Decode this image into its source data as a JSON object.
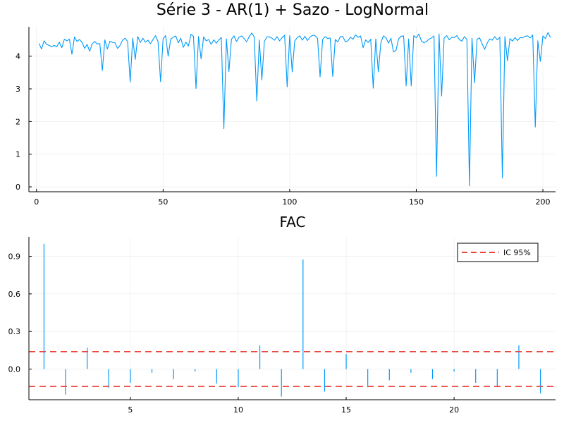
{
  "chart_data": [
    {
      "type": "line",
      "title": "Série 3 - AR(1) + Sazo - LogNormal",
      "xlabel": "",
      "ylabel": "",
      "xlim": [
        -3,
        205
      ],
      "ylim": [
        -0.15,
        4.9
      ],
      "xticks": [
        0,
        50,
        100,
        150,
        200
      ],
      "yticks": [
        0,
        1,
        2,
        3,
        4
      ],
      "xtick_labels": [
        "0",
        "50",
        "100",
        "150",
        "200"
      ],
      "ytick_labels": [
        "0",
        "1",
        "2",
        "3",
        "4"
      ],
      "grid": true,
      "legend": false,
      "series": [
        {
          "color": "#009AFA",
          "x_start": 1,
          "x_step": 1,
          "values": [
            4.39,
            4.22,
            4.47,
            4.36,
            4.33,
            4.29,
            4.33,
            4.29,
            4.43,
            4.26,
            4.52,
            4.47,
            4.52,
            4.06,
            4.59,
            4.45,
            4.51,
            4.42,
            4.24,
            4.36,
            4.15,
            4.38,
            4.45,
            4.37,
            4.39,
            3.56,
            4.5,
            4.22,
            4.46,
            4.42,
            4.41,
            4.24,
            4.33,
            4.49,
            4.55,
            4.45,
            3.21,
            4.55,
            3.9,
            4.6,
            4.42,
            4.55,
            4.43,
            4.49,
            4.38,
            4.51,
            4.63,
            4.45,
            3.22,
            4.53,
            4.63,
            4.0,
            4.52,
            4.58,
            4.62,
            4.41,
            4.55,
            4.27,
            4.43,
            4.31,
            4.67,
            4.61,
            3.01,
            4.6,
            3.92,
            4.59,
            4.47,
            4.51,
            4.36,
            4.5,
            4.4,
            4.5,
            4.57,
            1.78,
            4.53,
            3.53,
            4.52,
            4.62,
            4.45,
            4.58,
            4.62,
            4.54,
            4.44,
            4.6,
            4.71,
            4.59,
            2.63,
            4.5,
            3.27,
            4.45,
            4.59,
            4.59,
            4.55,
            4.49,
            4.6,
            4.47,
            4.57,
            4.64,
            3.06,
            4.63,
            3.52,
            4.47,
            4.57,
            4.62,
            4.49,
            4.61,
            4.48,
            4.58,
            4.64,
            4.63,
            4.55,
            3.37,
            4.51,
            4.6,
            4.54,
            4.56,
            3.38,
            4.51,
            4.44,
            4.6,
            4.6,
            4.44,
            4.47,
            4.58,
            4.52,
            4.65,
            4.58,
            4.62,
            4.26,
            4.5,
            4.42,
            4.52,
            3.02,
            4.53,
            3.52,
            4.41,
            4.62,
            4.57,
            4.4,
            4.55,
            4.13,
            4.18,
            4.53,
            4.61,
            4.62,
            3.09,
            4.53,
            3.09,
            4.63,
            4.56,
            4.68,
            4.47,
            4.41,
            4.45,
            4.52,
            4.56,
            4.62,
            0.32,
            4.68,
            2.78,
            4.56,
            4.63,
            4.5,
            4.58,
            4.57,
            4.63,
            4.51,
            4.46,
            4.6,
            4.51,
            0.03,
            4.56,
            3.18,
            4.52,
            4.56,
            4.38,
            4.21,
            4.4,
            4.53,
            4.49,
            4.6,
            4.5,
            4.58,
            0.28,
            4.6,
            3.86,
            4.54,
            4.46,
            4.57,
            4.48,
            4.57,
            4.56,
            4.61,
            4.62,
            4.56,
            4.65,
            1.83,
            4.47,
            3.84,
            4.62,
            4.54,
            4.72,
            4.57
          ]
        }
      ]
    },
    {
      "type": "bar",
      "title": "FAC",
      "xlabel": "",
      "ylabel": "",
      "xlim": [
        0.3,
        24.7
      ],
      "ylim": [
        -0.245,
        1.055
      ],
      "xticks": [
        5,
        10,
        15,
        20
      ],
      "yticks": [
        0,
        0.3,
        0.6,
        0.9
      ],
      "xtick_labels": [
        "5",
        "10",
        "15",
        "20"
      ],
      "ytick_labels": [
        "0.0",
        "0.3",
        "0.6",
        "0.9"
      ],
      "grid": true,
      "legend": "top-right",
      "series": [
        {
          "color": "#009AFA",
          "x": [
            1,
            2,
            3,
            4,
            5,
            6,
            7,
            8,
            9,
            10,
            11,
            12,
            13,
            14,
            15,
            16,
            17,
            18,
            19,
            20,
            21,
            22,
            23,
            24
          ],
          "values": [
            1.0,
            -0.205,
            0.17,
            -0.15,
            -0.11,
            -0.03,
            -0.08,
            -0.02,
            -0.115,
            -0.145,
            0.19,
            -0.22,
            0.875,
            -0.18,
            0.12,
            -0.145,
            -0.09,
            -0.03,
            -0.08,
            -0.02,
            -0.11,
            -0.145,
            0.19,
            -0.195
          ]
        }
      ],
      "confidence_band": {
        "name": "IC 95%",
        "color": "#E9463C",
        "upper": 0.139,
        "lower": -0.139
      }
    }
  ]
}
